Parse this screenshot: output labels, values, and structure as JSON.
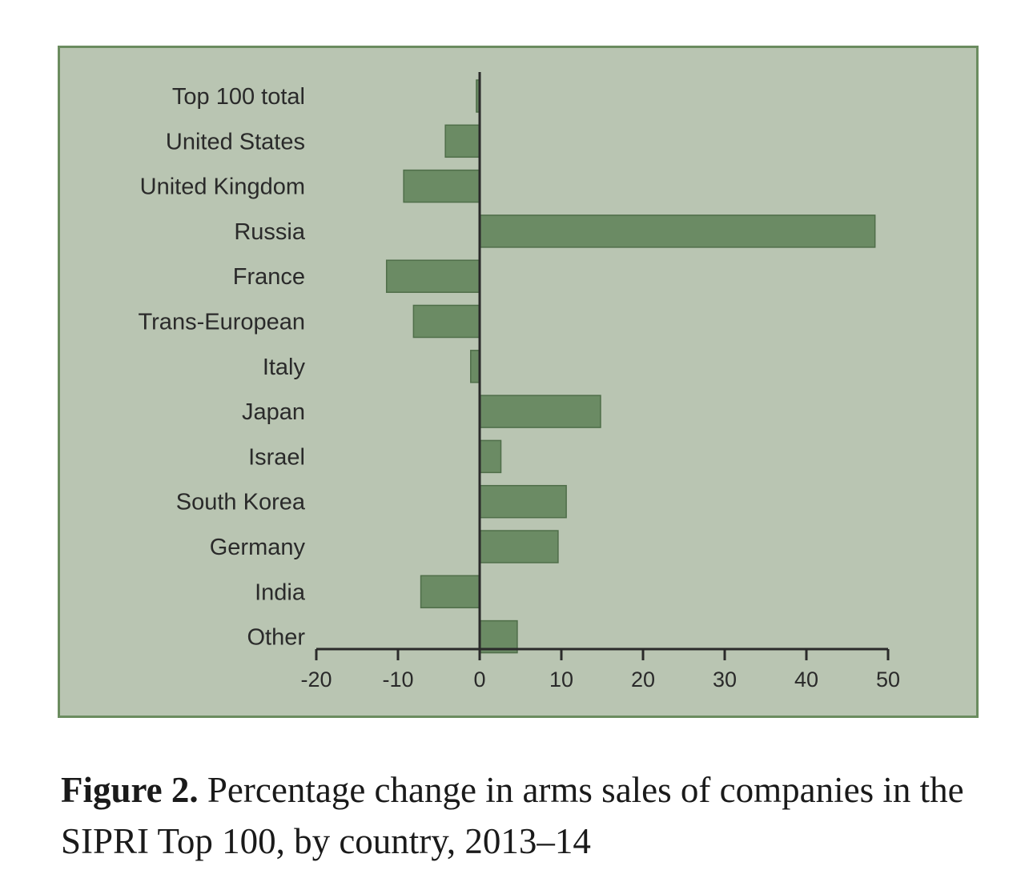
{
  "chart_data": {
    "type": "bar",
    "orientation": "horizontal",
    "categories": [
      "Top 100 total",
      "United States",
      "United Kingdom",
      "Russia",
      "France",
      "Trans-European",
      "Italy",
      "Japan",
      "Israel",
      "South Korea",
      "Germany",
      "India",
      "Other"
    ],
    "values": [
      -0.4,
      -4.2,
      -9.3,
      48.4,
      -11.4,
      -8.1,
      -1.1,
      14.8,
      2.6,
      10.6,
      9.6,
      -7.2,
      4.6
    ],
    "xticks": [
      "-20",
      "-10",
      "0",
      "10",
      "20",
      "30",
      "40",
      "50"
    ],
    "xlim": [
      -20,
      50
    ],
    "grid": false,
    "legend": false,
    "colors": {
      "background": "#b9c5b2",
      "border": "#6b8c5f",
      "bar": "#6b8b64"
    }
  },
  "caption": {
    "label": "Figure 2.",
    "text": "Percentage change in arms sales of companies in the SIPRI Top 100, by country, 2013–14"
  }
}
